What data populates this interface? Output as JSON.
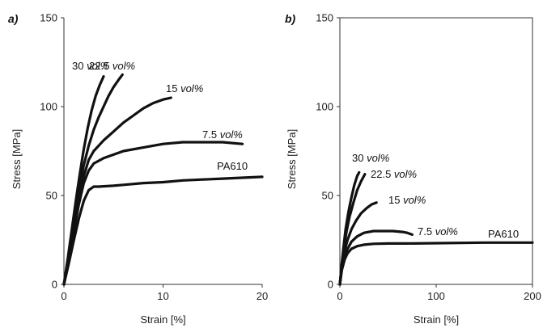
{
  "chart_data": [
    {
      "type": "line",
      "panel": "a)",
      "xlabel": "Strain [%]",
      "ylabel": "Stress [MPa]",
      "xlim": [
        0,
        20
      ],
      "ylim": [
        0,
        150
      ],
      "xticks": [
        0,
        10,
        20
      ],
      "yticks": [
        0,
        50,
        100,
        150
      ],
      "frame": false,
      "grid": false,
      "series": [
        {
          "name": "PA610",
          "label_text": "PA610",
          "label_unit": "",
          "x": [
            0,
            0.5,
            1.0,
            1.5,
            2.0,
            2.5,
            3.0,
            3.5,
            4.0,
            5,
            6,
            8,
            10,
            12,
            14,
            16,
            18,
            20
          ],
          "y": [
            0,
            12,
            25,
            37,
            47,
            53,
            55,
            55,
            55.2,
            55.5,
            56,
            57,
            57.5,
            58.5,
            59,
            59.5,
            60,
            60.5
          ]
        },
        {
          "name": "7.5 vol%",
          "label_text": "7.5",
          "label_unit": "vol%",
          "x": [
            0,
            0.5,
            1.0,
            1.5,
            2.0,
            2.5,
            3.0,
            4.0,
            5,
            6,
            8,
            10,
            12,
            14,
            16,
            18
          ],
          "y": [
            0,
            14,
            30,
            45,
            57,
            64,
            68,
            71,
            73,
            75,
            77,
            79,
            80,
            80,
            80,
            79
          ]
        },
        {
          "name": "15 vol%",
          "label_text": "15",
          "label_unit": "vol%",
          "x": [
            0,
            0.5,
            1.0,
            1.5,
            2.0,
            2.5,
            3.0,
            4.0,
            5,
            6,
            7,
            8,
            9,
            10,
            10.8
          ],
          "y": [
            0,
            15,
            32,
            48,
            61,
            70,
            75,
            81,
            86,
            91,
            95,
            99,
            102,
            104,
            105
          ]
        },
        {
          "name": "22.5 vol%",
          "label_text": "22.5",
          "label_unit": "vol%",
          "x": [
            0,
            0.5,
            1.0,
            1.5,
            2.0,
            2.5,
            3.0,
            3.5,
            4.0,
            4.5,
            5.0,
            5.5,
            5.9
          ],
          "y": [
            0,
            17,
            36,
            53,
            67,
            78,
            87,
            94,
            100,
            106,
            111,
            115,
            118
          ]
        },
        {
          "name": "30 vol%",
          "label_text": "30",
          "label_unit": "vol%",
          "x": [
            0,
            0.4,
            0.8,
            1.2,
            1.6,
            2.0,
            2.4,
            2.8,
            3.2,
            3.6,
            4.0
          ],
          "y": [
            0,
            15,
            31,
            47,
            62,
            76,
            88,
            98,
            106,
            112,
            117
          ]
        }
      ]
    },
    {
      "type": "line",
      "panel": "b)",
      "xlabel": "Strain [%]",
      "ylabel": "Stress [MPa]",
      "xlim": [
        0,
        200
      ],
      "ylim": [
        0,
        150
      ],
      "xticks": [
        0,
        100,
        200
      ],
      "yticks": [
        0,
        50,
        100,
        150
      ],
      "frame": true,
      "grid": false,
      "series": [
        {
          "name": "PA610",
          "label_text": "PA610",
          "label_unit": "",
          "x": [
            0,
            2,
            5,
            8,
            12,
            18,
            25,
            35,
            50,
            70,
            100,
            150,
            200
          ],
          "y": [
            0,
            8,
            14,
            17.5,
            20,
            21.5,
            22.3,
            22.8,
            23,
            23,
            23.2,
            23.5,
            23.5
          ]
        },
        {
          "name": "7.5 vol%",
          "label_text": "7.5",
          "label_unit": "vol%",
          "x": [
            0,
            2,
            5,
            8,
            12,
            18,
            25,
            35,
            45,
            55,
            65,
            70,
            75
          ],
          "y": [
            0,
            9,
            16,
            20,
            24,
            27,
            29,
            30,
            30,
            30,
            29.5,
            29,
            28
          ]
        },
        {
          "name": "15 vol%",
          "label_text": "15",
          "label_unit": "vol%",
          "x": [
            0,
            2,
            5,
            8,
            12,
            17,
            22,
            28,
            33,
            38
          ],
          "y": [
            0,
            10,
            19,
            25,
            31,
            36,
            40,
            43,
            45,
            46
          ]
        },
        {
          "name": "22.5 vol%",
          "label_text": "22.5",
          "label_unit": "vol%",
          "x": [
            0,
            2,
            4,
            7,
            10,
            14,
            18,
            22,
            26
          ],
          "y": [
            0,
            11,
            20,
            30,
            38,
            46,
            53,
            58,
            62
          ]
        },
        {
          "name": "30 vol%",
          "label_text": "30",
          "label_unit": "vol%",
          "x": [
            0,
            2,
            4,
            6,
            9,
            12,
            15,
            18,
            20
          ],
          "y": [
            0,
            12,
            22,
            31,
            41,
            49,
            56,
            61,
            63
          ]
        }
      ]
    }
  ]
}
